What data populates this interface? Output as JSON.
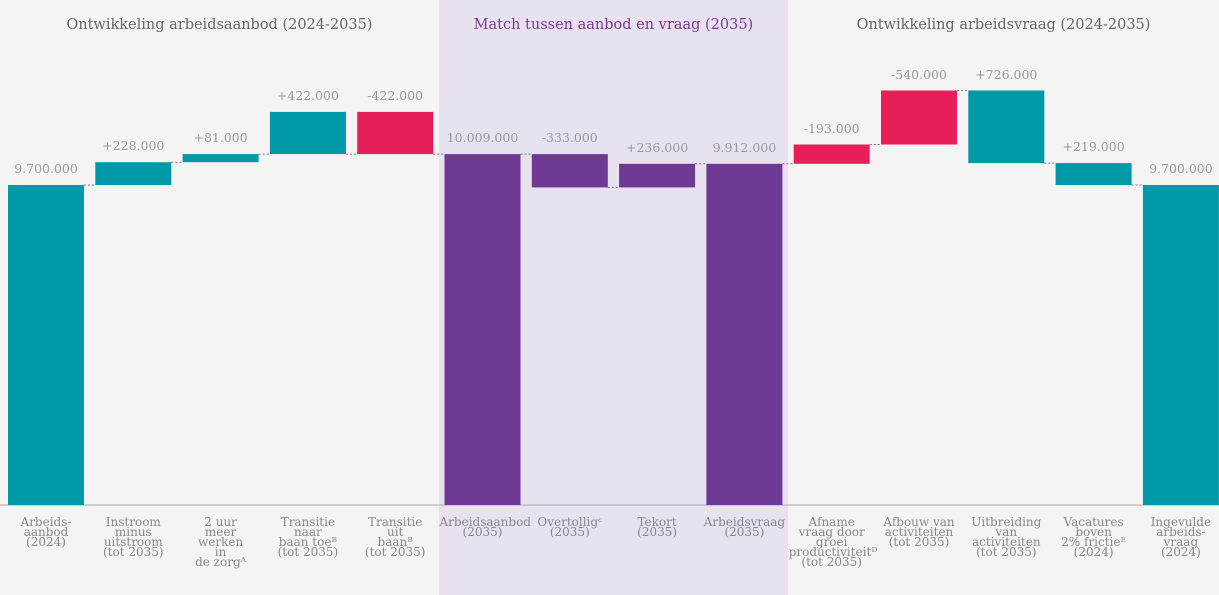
{
  "chart_data": {
    "type": "waterfall",
    "ylim": [
      6500000,
      11500000
    ],
    "panels": [
      {
        "title": "Ontwikkeling arbeidsaanbod (2024-2035)",
        "background": "#f4f4f4",
        "title_color": "#666666",
        "direction": "ltr",
        "categories": [
          "Arbeids-\naanbod\n(2024)",
          "Instroom\nminus\nuitstroom\n(tot 2035)",
          "2 uur\nmeer\nwerken\nin\nde zorgᴬ",
          "Transitie\nnaar\nbaan toeᴮ\n(tot 2035)",
          "Transitie\nuit\nbaanᴮ\n(tot 2035)"
        ],
        "kinds": [
          "total",
          "delta",
          "delta",
          "delta",
          "delta"
        ],
        "values": [
          9700000,
          228000,
          81000,
          422000,
          -422000
        ],
        "value_labels": [
          "9.700.000",
          "+228.000",
          "+81.000",
          "+422.000",
          "-422.000"
        ],
        "colors": [
          "#0099a8",
          "#0099a8",
          "#0099a8",
          "#0099a8",
          "#e61e5a"
        ]
      },
      {
        "title": "Match tussen aanbod en vraag (2035)",
        "background": "#e8e1ef",
        "title_color": "#7b3a96",
        "direction": "ltr",
        "categories": [
          "Arbeidsaanbod\n(2035)",
          "Overtolligᶜ\n(2035)",
          "Tekort\n(2035)",
          "Arbeidsvraag\n(2035)"
        ],
        "kinds": [
          "total",
          "delta",
          "delta",
          "total"
        ],
        "values": [
          10009000,
          -333000,
          236000,
          9912000
        ],
        "value_labels": [
          "10.009.000",
          "-333.000",
          "+236.000",
          "9.912.000"
        ],
        "colors": [
          "#6e3a94",
          "#6e3a94",
          "#6e3a94",
          "#6e3a94"
        ]
      },
      {
        "title": "Ontwikkeling arbeidsvraag (2024-2035)",
        "background": "#f4f4f4",
        "title_color": "#666666",
        "direction": "rtl",
        "categories": [
          "Afname\nvraag door\ngroei\nproductiviteitᴰ\n(tot 2035)",
          "Afbouw van\nactiviteiten\n(tot 2035)",
          "Uitbreiding\nvan\nactiviteiten\n(tot 2035)",
          "Vacatures\nboven\n2% frictieᴱ\n(2024)",
          "Ingevulde\narbeids-\nvraag\n(2024)"
        ],
        "kinds": [
          "delta",
          "delta",
          "delta",
          "delta",
          "total"
        ],
        "values": [
          -193000,
          -540000,
          726000,
          219000,
          9700000
        ],
        "value_labels": [
          "-193.000",
          "-540.000",
          "+726.000",
          "+219.000",
          "9.700.000"
        ],
        "colors": [
          "#e61e5a",
          "#e61e5a",
          "#0099a8",
          "#0099a8",
          "#0099a8"
        ]
      }
    ]
  }
}
